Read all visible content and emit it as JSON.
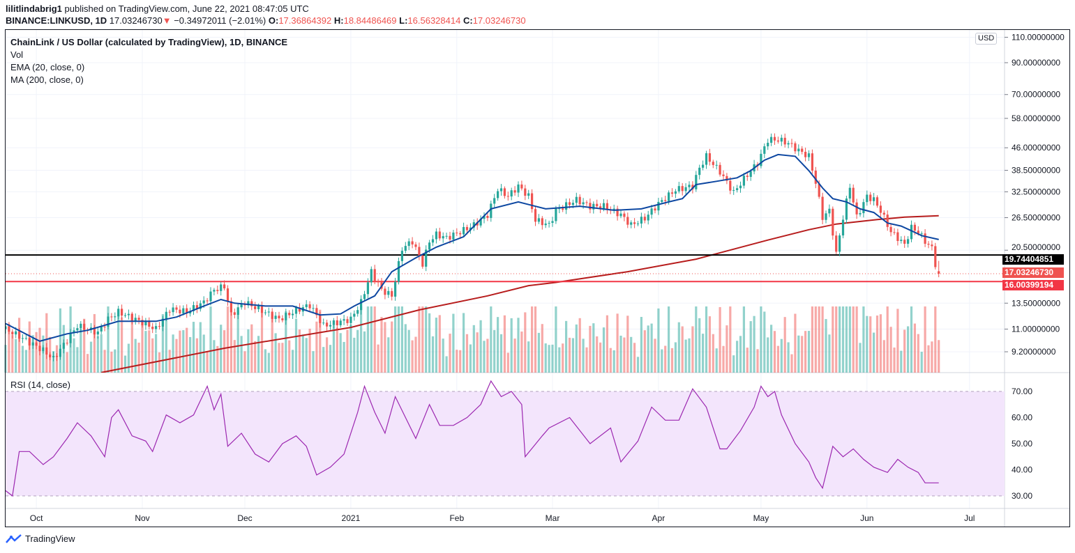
{
  "header": {
    "author": "lilitlindabrig1",
    "published": "published on TradingView.com, June 22, 2021 08:47:05 UTC",
    "symbol": "BINANCE:LINKUSD, 1D",
    "last": "17.03246730",
    "change": "−0.34972011 (−2.01%)",
    "o_label": "O:",
    "o": "17.36864392",
    "h_label": "H:",
    "h": "18.84486469",
    "l_label": "L:",
    "l": "16.56328414",
    "c_label": "C:",
    "c": "17.03246730"
  },
  "legend": {
    "title": "ChainLink / US Dollar (calculated by TradingView), 1D, BINANCE",
    "vol": "Vol",
    "ema": "EMA (20, close, 0)",
    "ma": "MA (200, close, 0)",
    "rsi": "RSI (14, close)"
  },
  "currency_badge": "USD",
  "footer": {
    "brand": "TradingView"
  },
  "colors": {
    "up": "#26a69a",
    "down": "#ef5350",
    "ema": "#0d47a1",
    "ma": "#b71c1c",
    "rsi": "#9c27b0",
    "rsi_band": "#f3e5fc",
    "support": "#000000",
    "level": "#f23645"
  },
  "chart_data": {
    "type": "candlestick",
    "scale": "log",
    "grid": true,
    "price_ticks": [
      "110.00000000",
      "90.00000000",
      "70.00000000",
      "58.00000000",
      "46.00000000",
      "38.50000000",
      "32.50000000",
      "26.50000000",
      "20.50000000",
      "13.50000000",
      "11.00000000",
      "9.20000000"
    ],
    "time_ticks": [
      [
        "2020-10-01",
        "Oct"
      ],
      [
        "2020-11-01",
        "Nov"
      ],
      [
        "2020-12-01",
        "Dec"
      ],
      [
        "2021-01-01",
        "2021"
      ],
      [
        "2021-02-01",
        "Feb"
      ],
      [
        "2021-03-01",
        "Mar"
      ],
      [
        "2021-04-01",
        "Apr"
      ],
      [
        "2021-05-01",
        "May"
      ],
      [
        "2021-06-01",
        "Jun"
      ],
      [
        "2021-07-01",
        "Jul"
      ]
    ],
    "horizontal_levels": [
      {
        "price": 19.74404851,
        "label": "19.74404851",
        "color": "#000000"
      },
      {
        "price": 16.00399194,
        "label": "16.00399194",
        "color": "#f23645"
      }
    ],
    "last_price": {
      "price": 17.0324673,
      "label": "17.03246730"
    },
    "last_candle": {
      "date": "2021-06-22",
      "open": 17.36864392,
      "high": 18.84486469,
      "low": 16.56328414,
      "close": 17.0324673
    },
    "close_approx": [
      [
        "2020-09-22",
        11.0
      ],
      [
        "2020-09-26",
        10.4
      ],
      [
        "2020-10-03",
        9.3
      ],
      [
        "2020-10-06",
        8.7
      ],
      [
        "2020-10-10",
        10.1
      ],
      [
        "2020-10-13",
        11.3
      ],
      [
        "2020-10-19",
        10.7
      ],
      [
        "2020-10-22",
        11.9
      ],
      [
        "2020-10-25",
        12.6
      ],
      [
        "2020-11-01",
        11.6
      ],
      [
        "2020-11-05",
        11.0
      ],
      [
        "2020-11-09",
        12.9
      ],
      [
        "2020-11-14",
        12.6
      ],
      [
        "2020-11-19",
        13.6
      ],
      [
        "2020-11-22",
        15.0
      ],
      [
        "2020-11-25",
        15.4
      ],
      [
        "2020-11-27",
        12.3
      ],
      [
        "2020-12-01",
        13.6
      ],
      [
        "2020-12-05",
        12.9
      ],
      [
        "2020-12-11",
        11.9
      ],
      [
        "2020-12-17",
        12.9
      ],
      [
        "2020-12-20",
        13.3
      ],
      [
        "2020-12-24",
        11.3
      ],
      [
        "2020-12-28",
        11.6
      ],
      [
        "2021-01-01",
        11.9
      ],
      [
        "2021-01-04",
        13.6
      ],
      [
        "2021-01-07",
        17.3
      ],
      [
        "2021-01-10",
        15.0
      ],
      [
        "2021-01-13",
        14.3
      ],
      [
        "2021-01-16",
        20.8
      ],
      [
        "2021-01-19",
        22.0
      ],
      [
        "2021-01-22",
        18.4
      ],
      [
        "2021-01-24",
        22.0
      ],
      [
        "2021-01-26",
        23.2
      ],
      [
        "2021-01-29",
        22.6
      ],
      [
        "2021-02-02",
        23.7
      ],
      [
        "2021-02-06",
        25.0
      ],
      [
        "2021-02-10",
        27.1
      ],
      [
        "2021-02-13",
        33.2
      ],
      [
        "2021-02-16",
        31.4
      ],
      [
        "2021-02-19",
        34.0
      ],
      [
        "2021-02-22",
        31.4
      ],
      [
        "2021-02-24",
        26.0
      ],
      [
        "2021-02-28",
        25.0
      ],
      [
        "2021-03-02",
        28.0
      ],
      [
        "2021-03-08",
        30.5
      ],
      [
        "2021-03-12",
        29.0
      ],
      [
        "2021-03-16",
        29.0
      ],
      [
        "2021-03-21",
        27.1
      ],
      [
        "2021-03-24",
        25.0
      ],
      [
        "2021-03-28",
        26.4
      ],
      [
        "2021-04-01",
        29.6
      ],
      [
        "2021-04-06",
        33.0
      ],
      [
        "2021-04-11",
        34.0
      ],
      [
        "2021-04-13",
        39.2
      ],
      [
        "2021-04-15",
        43.0
      ],
      [
        "2021-04-19",
        38.1
      ],
      [
        "2021-04-21",
        35.0
      ],
      [
        "2021-04-23",
        32.3
      ],
      [
        "2021-04-26",
        36.0
      ],
      [
        "2021-04-30",
        40.8
      ],
      [
        "2021-05-03",
        49.0
      ],
      [
        "2021-05-06",
        49.0
      ],
      [
        "2021-05-09",
        47.7
      ],
      [
        "2021-05-12",
        45.0
      ],
      [
        "2021-05-15",
        43.0
      ],
      [
        "2021-05-17",
        35.0
      ],
      [
        "2021-05-19",
        26.6
      ],
      [
        "2021-05-21",
        28.0
      ],
      [
        "2021-05-23",
        19.9
      ],
      [
        "2021-05-25",
        26.6
      ],
      [
        "2021-05-27",
        34.0
      ],
      [
        "2021-05-29",
        26.6
      ],
      [
        "2021-06-01",
        31.4
      ],
      [
        "2021-06-03",
        30.5
      ],
      [
        "2021-06-05",
        28.0
      ],
      [
        "2021-06-08",
        23.7
      ],
      [
        "2021-06-10",
        22.6
      ],
      [
        "2021-06-12",
        21.4
      ],
      [
        "2021-06-14",
        24.5
      ],
      [
        "2021-06-16",
        23.7
      ],
      [
        "2021-06-18",
        22.0
      ],
      [
        "2021-06-20",
        20.8
      ],
      [
        "2021-06-21",
        18.4
      ]
    ],
    "ema20": [
      [
        "2020-09-22",
        11.5
      ],
      [
        "2020-10-02",
        10.0
      ],
      [
        "2020-10-10",
        10.6
      ],
      [
        "2020-10-16",
        10.9
      ],
      [
        "2020-10-25",
        11.7
      ],
      [
        "2020-11-05",
        11.7
      ],
      [
        "2020-11-11",
        12.1
      ],
      [
        "2020-11-19",
        13.2
      ],
      [
        "2020-11-24",
        13.9
      ],
      [
        "2020-11-28",
        13.5
      ],
      [
        "2020-12-07",
        13.2
      ],
      [
        "2020-12-15",
        13.2
      ],
      [
        "2020-12-23",
        12.3
      ],
      [
        "2020-12-29",
        12.4
      ],
      [
        "2021-01-02",
        13.2
      ],
      [
        "2021-01-08",
        14.3
      ],
      [
        "2021-01-13",
        17.3
      ],
      [
        "2021-01-20",
        19.3
      ],
      [
        "2021-01-26",
        21.0
      ],
      [
        "2021-02-03",
        22.8
      ],
      [
        "2021-02-11",
        28.4
      ],
      [
        "2021-02-19",
        30.0
      ],
      [
        "2021-02-27",
        28.4
      ],
      [
        "2021-03-09",
        29.0
      ],
      [
        "2021-03-19",
        28.1
      ],
      [
        "2021-03-27",
        28.4
      ],
      [
        "2021-04-04",
        30.0
      ],
      [
        "2021-04-08",
        30.8
      ],
      [
        "2021-04-12",
        34.4
      ],
      [
        "2021-04-18",
        35.3
      ],
      [
        "2021-04-24",
        36.3
      ],
      [
        "2021-04-28",
        38.4
      ],
      [
        "2021-05-02",
        41.7
      ],
      [
        "2021-05-06",
        43.6
      ],
      [
        "2021-05-11",
        43.0
      ],
      [
        "2021-05-15",
        38.4
      ],
      [
        "2021-05-19",
        33.5
      ],
      [
        "2021-05-22",
        30.8
      ],
      [
        "2021-05-26",
        30.0
      ],
      [
        "2021-05-30",
        28.4
      ],
      [
        "2021-06-03",
        27.6
      ],
      [
        "2021-06-07",
        25.4
      ],
      [
        "2021-06-11",
        24.8
      ],
      [
        "2021-06-14",
        23.9
      ],
      [
        "2021-06-17",
        23.0
      ],
      [
        "2021-06-22",
        22.3
      ]
    ],
    "ma200": [
      [
        "2020-10-20",
        7.81
      ],
      [
        "2020-11-25",
        9.46
      ],
      [
        "2021-01-01",
        11.15
      ],
      [
        "2021-01-21",
        12.8
      ],
      [
        "2021-02-10",
        14.3
      ],
      [
        "2021-02-22",
        15.5
      ],
      [
        "2021-03-02",
        15.9
      ],
      [
        "2021-03-23",
        17.3
      ],
      [
        "2021-04-12",
        19.1
      ],
      [
        "2021-05-03",
        22.2
      ],
      [
        "2021-05-15",
        24.1
      ],
      [
        "2021-05-23",
        25.2
      ],
      [
        "2021-06-04",
        26.1
      ],
      [
        "2021-06-12",
        26.6
      ],
      [
        "2021-06-22",
        26.9
      ]
    ],
    "rsi_ticks": [
      70,
      60,
      50,
      40,
      30
    ],
    "rsi_band": [
      30,
      70
    ],
    "rsi14": [
      [
        "2020-09-22",
        32
      ],
      [
        "2020-09-24",
        30
      ],
      [
        "2020-09-26",
        47
      ],
      [
        "2020-09-29",
        47
      ],
      [
        "2020-10-03",
        42
      ],
      [
        "2020-10-06",
        45
      ],
      [
        "2020-10-10",
        52
      ],
      [
        "2020-10-13",
        58
      ],
      [
        "2020-10-17",
        53
      ],
      [
        "2020-10-21",
        45
      ],
      [
        "2020-10-23",
        60
      ],
      [
        "2020-10-25",
        63
      ],
      [
        "2020-10-29",
        53
      ],
      [
        "2020-11-02",
        51
      ],
      [
        "2020-11-04",
        47
      ],
      [
        "2020-11-08",
        61
      ],
      [
        "2020-11-12",
        58
      ],
      [
        "2020-11-16",
        61
      ],
      [
        "2020-11-20",
        72
      ],
      [
        "2020-11-22",
        63
      ],
      [
        "2020-11-24",
        69
      ],
      [
        "2020-11-26",
        49
      ],
      [
        "2020-11-30",
        54
      ],
      [
        "2020-12-04",
        46
      ],
      [
        "2020-12-08",
        43
      ],
      [
        "2020-12-12",
        50
      ],
      [
        "2020-12-16",
        53
      ],
      [
        "2020-12-19",
        49
      ],
      [
        "2020-12-22",
        38
      ],
      [
        "2020-12-26",
        41
      ],
      [
        "2020-12-30",
        46
      ],
      [
        "2021-01-03",
        62
      ],
      [
        "2021-01-05",
        72
      ],
      [
        "2021-01-08",
        62
      ],
      [
        "2021-01-11",
        54
      ],
      [
        "2021-01-14",
        68
      ],
      [
        "2021-01-17",
        60
      ],
      [
        "2021-01-20",
        52
      ],
      [
        "2021-01-24",
        65
      ],
      [
        "2021-01-27",
        57
      ],
      [
        "2021-01-31",
        57
      ],
      [
        "2021-02-04",
        60
      ],
      [
        "2021-02-08",
        65
      ],
      [
        "2021-02-11",
        74
      ],
      [
        "2021-02-14",
        68
      ],
      [
        "2021-02-17",
        70
      ],
      [
        "2021-02-20",
        65
      ],
      [
        "2021-02-21",
        45
      ],
      [
        "2021-02-26",
        53
      ],
      [
        "2021-02-28",
        56
      ],
      [
        "2021-03-06",
        60
      ],
      [
        "2021-03-12",
        50
      ],
      [
        "2021-03-18",
        56
      ],
      [
        "2021-03-21",
        43
      ],
      [
        "2021-03-26",
        51
      ],
      [
        "2021-03-30",
        64
      ],
      [
        "2021-04-03",
        59
      ],
      [
        "2021-04-07",
        59
      ],
      [
        "2021-04-11",
        71
      ],
      [
        "2021-04-15",
        64
      ],
      [
        "2021-04-19",
        48
      ],
      [
        "2021-04-21",
        48
      ],
      [
        "2021-04-25",
        55
      ],
      [
        "2021-04-29",
        64
      ],
      [
        "2021-05-01",
        72
      ],
      [
        "2021-05-03",
        68
      ],
      [
        "2021-05-05",
        70
      ],
      [
        "2021-05-07",
        61
      ],
      [
        "2021-05-11",
        50
      ],
      [
        "2021-05-15",
        43
      ],
      [
        "2021-05-17",
        37
      ],
      [
        "2021-05-19",
        33
      ],
      [
        "2021-05-22",
        49
      ],
      [
        "2021-05-25",
        45
      ],
      [
        "2021-05-28",
        48
      ],
      [
        "2021-05-31",
        44
      ],
      [
        "2021-06-03",
        41
      ],
      [
        "2021-06-07",
        39
      ],
      [
        "2021-06-10",
        44
      ],
      [
        "2021-06-13",
        41
      ],
      [
        "2021-06-16",
        39
      ],
      [
        "2021-06-18",
        35
      ],
      [
        "2021-06-22",
        35
      ]
    ],
    "rsi_last": 35
  }
}
